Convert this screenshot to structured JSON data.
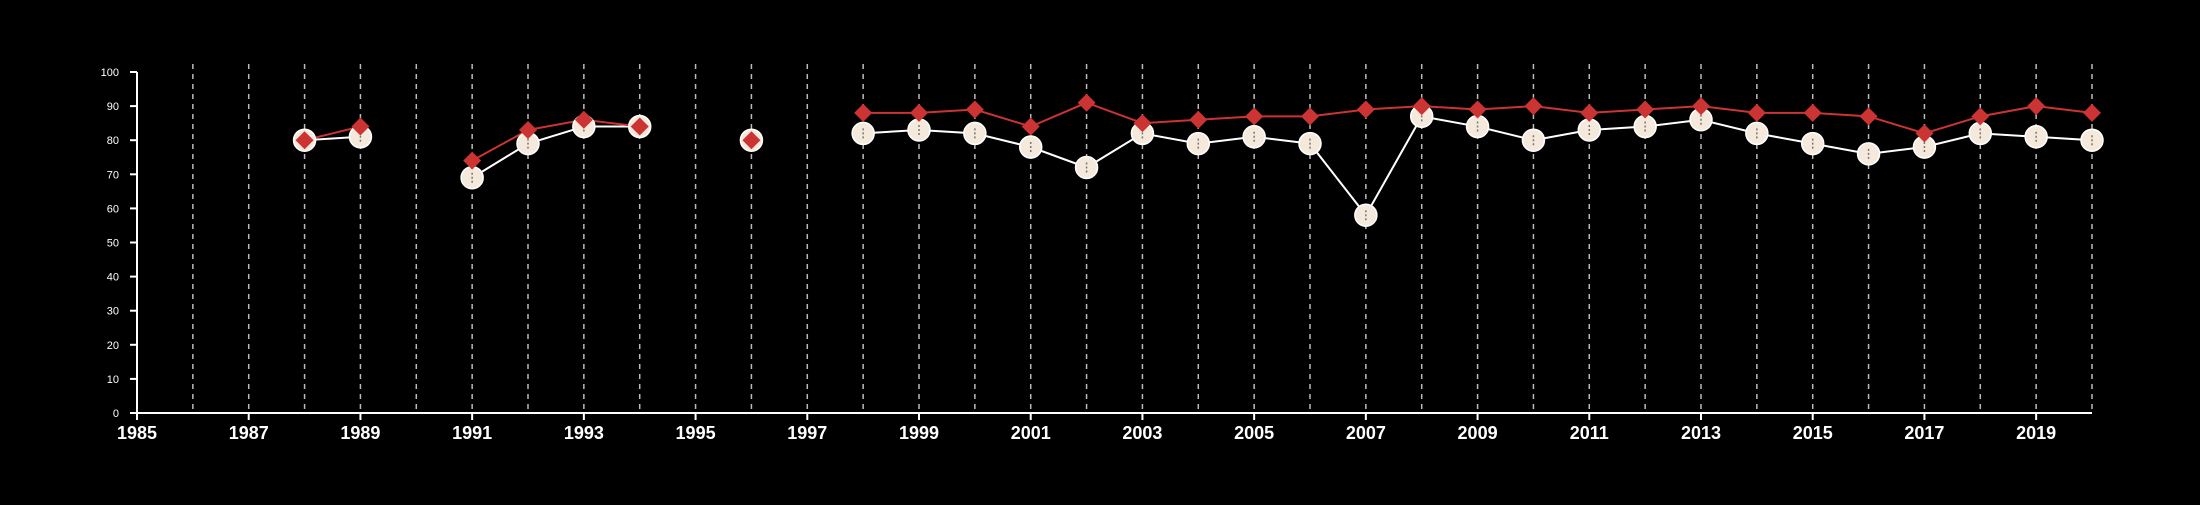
{
  "chart_data": {
    "type": "line",
    "title": "",
    "xlabel": "",
    "ylabel": "",
    "xlim": [
      1985,
      2020
    ],
    "ylim": [
      0,
      100
    ],
    "x_ticks": [
      1985,
      1987,
      1989,
      1991,
      1993,
      1995,
      1997,
      1999,
      2001,
      2003,
      2005,
      2007,
      2009,
      2011,
      2013,
      2015,
      2017,
      2019
    ],
    "x_tick_labels": [
      "1985",
      "1987",
      "1989",
      "1991",
      "1993",
      "1995",
      "1997",
      "1999",
      "2001",
      "2003",
      "2005",
      "2007",
      "2009",
      "2011",
      "2013",
      "2015",
      "2017",
      "2019"
    ],
    "y_ticks": [
      0,
      10,
      20,
      30,
      40,
      50,
      60,
      70,
      80,
      90,
      100
    ],
    "y_tick_labels": [
      "0",
      "10",
      "20",
      "30",
      "40",
      "50",
      "60",
      "70",
      "80",
      "90",
      "100"
    ],
    "vertical_gridlines_at": [
      1986,
      1987,
      1988,
      1989,
      1990,
      1991,
      1992,
      1993,
      1994,
      1995,
      1996,
      1997,
      1998,
      1999,
      2000,
      2001,
      2002,
      2003,
      2004,
      2005,
      2006,
      2007,
      2008,
      2009,
      2010,
      2011,
      2012,
      2013,
      2014,
      2015,
      2016,
      2017,
      2018,
      2019,
      2020
    ],
    "grid": "vertical dashed",
    "legend": "none",
    "series": [
      {
        "marker": "diamond",
        "color": "#cc3333",
        "points": [
          {
            "x": 1988,
            "y": 80
          },
          {
            "x": 1989,
            "y": 84
          },
          {
            "x": 1991,
            "y": 74
          },
          {
            "x": 1992,
            "y": 83
          },
          {
            "x": 1993,
            "y": 86
          },
          {
            "x": 1994,
            "y": 84
          },
          {
            "x": 1996,
            "y": 80
          },
          {
            "x": 1998,
            "y": 88
          },
          {
            "x": 1999,
            "y": 88
          },
          {
            "x": 2000,
            "y": 89
          },
          {
            "x": 2001,
            "y": 84
          },
          {
            "x": 2002,
            "y": 91
          },
          {
            "x": 2003,
            "y": 85
          },
          {
            "x": 2004,
            "y": 86
          },
          {
            "x": 2005,
            "y": 87
          },
          {
            "x": 2006,
            "y": 87
          },
          {
            "x": 2007,
            "y": 89
          },
          {
            "x": 2008,
            "y": 90
          },
          {
            "x": 2009,
            "y": 89
          },
          {
            "x": 2010,
            "y": 90
          },
          {
            "x": 2011,
            "y": 88
          },
          {
            "x": 2012,
            "y": 89
          },
          {
            "x": 2013,
            "y": 90
          },
          {
            "x": 2014,
            "y": 88
          },
          {
            "x": 2015,
            "y": 88
          },
          {
            "x": 2016,
            "y": 87
          },
          {
            "x": 2017,
            "y": 82
          },
          {
            "x": 2018,
            "y": 87
          },
          {
            "x": 2019,
            "y": 90
          },
          {
            "x": 2020,
            "y": 88
          }
        ]
      },
      {
        "marker": "circle",
        "color": "#f5e9dc",
        "line_color": "#ffffff",
        "points": [
          {
            "x": 1988,
            "y": 80
          },
          {
            "x": 1989,
            "y": 81
          },
          {
            "x": 1991,
            "y": 69
          },
          {
            "x": 1992,
            "y": 79
          },
          {
            "x": 1993,
            "y": 84
          },
          {
            "x": 1994,
            "y": 84
          },
          {
            "x": 1996,
            "y": 80
          },
          {
            "x": 1998,
            "y": 82
          },
          {
            "x": 1999,
            "y": 83
          },
          {
            "x": 2000,
            "y": 82
          },
          {
            "x": 2001,
            "y": 78
          },
          {
            "x": 2002,
            "y": 72
          },
          {
            "x": 2003,
            "y": 82
          },
          {
            "x": 2004,
            "y": 79
          },
          {
            "x": 2005,
            "y": 81
          },
          {
            "x": 2006,
            "y": 79
          },
          {
            "x": 2007,
            "y": 58
          },
          {
            "x": 2008,
            "y": 87
          },
          {
            "x": 2009,
            "y": 84
          },
          {
            "x": 2010,
            "y": 80
          },
          {
            "x": 2011,
            "y": 83
          },
          {
            "x": 2012,
            "y": 84
          },
          {
            "x": 2013,
            "y": 86
          },
          {
            "x": 2014,
            "y": 82
          },
          {
            "x": 2015,
            "y": 79
          },
          {
            "x": 2016,
            "y": 76
          },
          {
            "x": 2017,
            "y": 78
          },
          {
            "x": 2018,
            "y": 82
          },
          {
            "x": 2019,
            "y": 81
          },
          {
            "x": 2020,
            "y": 80
          }
        ]
      }
    ]
  },
  "colors": {
    "background": "#000000",
    "axis": "#ffffff",
    "grid": "#bbbbbb",
    "point_tick": "#777777"
  }
}
